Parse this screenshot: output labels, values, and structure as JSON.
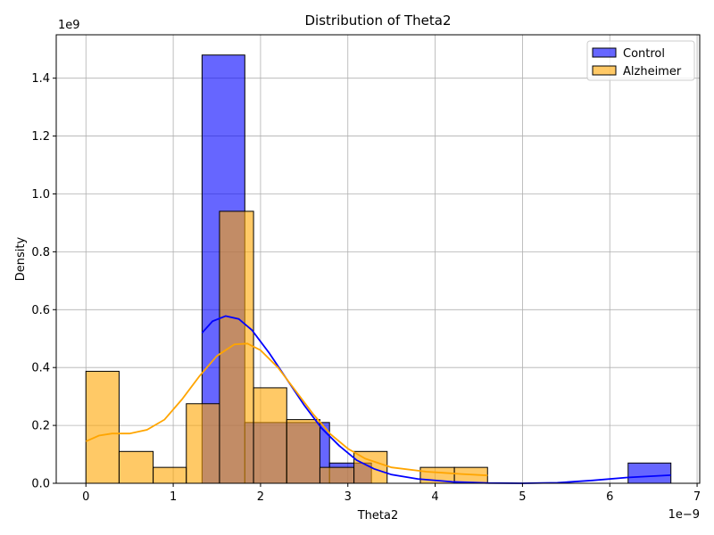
{
  "chart_data": {
    "type": "histogram",
    "title": "Distribution of Theta2",
    "xlabel": "Theta2",
    "ylabel": "Density",
    "x_offset_label": "1e−9",
    "y_offset_label": "1e9",
    "x_scale": 1e-09,
    "y_scale": 1000000000.0,
    "xlim": [
      -0.34,
      7.03
    ],
    "ylim": [
      0,
      1.55
    ],
    "x_ticks": [
      0,
      1,
      2,
      3,
      4,
      5,
      6,
      7
    ],
    "x_tick_labels": [
      "0",
      "1",
      "2",
      "3",
      "4",
      "5",
      "6",
      "7"
    ],
    "y_ticks": [
      0.0,
      0.2,
      0.4,
      0.6,
      0.8,
      1.0,
      1.2,
      1.4
    ],
    "y_tick_labels": [
      "0.0",
      "0.2",
      "0.4",
      "0.6",
      "0.8",
      "1.0",
      "1.2",
      "1.4"
    ],
    "grid": true,
    "legend_position": "top-right",
    "series": [
      {
        "name": "Control",
        "color": "#0000ff",
        "fill_opacity": 0.6,
        "bins": [
          {
            "x0": 1.33,
            "x1": 1.82,
            "value": 1.48
          },
          {
            "x0": 1.82,
            "x1": 2.3,
            "value": 0.21
          },
          {
            "x0": 2.3,
            "x1": 2.79,
            "value": 0.21
          },
          {
            "x0": 2.79,
            "x1": 3.27,
            "value": 0.07
          },
          {
            "x0": 6.21,
            "x1": 6.7,
            "value": 0.07
          }
        ],
        "kde": {
          "color": "#0000ff",
          "points": [
            [
              1.33,
              0.52
            ],
            [
              1.45,
              0.56
            ],
            [
              1.6,
              0.578
            ],
            [
              1.75,
              0.568
            ],
            [
              1.9,
              0.53
            ],
            [
              2.1,
              0.45
            ],
            [
              2.3,
              0.36
            ],
            [
              2.5,
              0.27
            ],
            [
              2.7,
              0.19
            ],
            [
              2.9,
              0.13
            ],
            [
              3.1,
              0.08
            ],
            [
              3.3,
              0.05
            ],
            [
              3.5,
              0.03
            ],
            [
              3.8,
              0.015
            ],
            [
              4.2,
              0.005
            ],
            [
              4.6,
              0.001
            ],
            [
              5.0,
              0.0
            ],
            [
              5.4,
              0.002
            ],
            [
              5.8,
              0.01
            ],
            [
              6.2,
              0.02
            ],
            [
              6.7,
              0.028
            ]
          ]
        }
      },
      {
        "name": "Alzheimer",
        "color": "#ffa500",
        "fill_opacity": 0.6,
        "bins": [
          {
            "x0": 0.0,
            "x1": 0.38,
            "value": 0.387
          },
          {
            "x0": 0.38,
            "x1": 0.77,
            "value": 0.11
          },
          {
            "x0": 0.77,
            "x1": 1.15,
            "value": 0.055
          },
          {
            "x0": 1.15,
            "x1": 1.53,
            "value": 0.275
          },
          {
            "x0": 1.53,
            "x1": 1.92,
            "value": 0.94
          },
          {
            "x0": 1.92,
            "x1": 2.3,
            "value": 0.33
          },
          {
            "x0": 2.3,
            "x1": 2.68,
            "value": 0.22
          },
          {
            "x0": 2.68,
            "x1": 3.07,
            "value": 0.055
          },
          {
            "x0": 3.07,
            "x1": 3.45,
            "value": 0.11
          },
          {
            "x0": 3.83,
            "x1": 4.22,
            "value": 0.055
          },
          {
            "x0": 4.22,
            "x1": 4.6,
            "value": 0.055
          }
        ],
        "kde": {
          "color": "#ffa500",
          "points": [
            [
              0.0,
              0.145
            ],
            [
              0.15,
              0.165
            ],
            [
              0.3,
              0.172
            ],
            [
              0.5,
              0.172
            ],
            [
              0.7,
              0.185
            ],
            [
              0.9,
              0.22
            ],
            [
              1.1,
              0.29
            ],
            [
              1.3,
              0.37
            ],
            [
              1.5,
              0.44
            ],
            [
              1.7,
              0.48
            ],
            [
              1.85,
              0.483
            ],
            [
              2.0,
              0.46
            ],
            [
              2.2,
              0.4
            ],
            [
              2.4,
              0.32
            ],
            [
              2.6,
              0.24
            ],
            [
              2.8,
              0.17
            ],
            [
              3.0,
              0.12
            ],
            [
              3.2,
              0.085
            ],
            [
              3.5,
              0.055
            ],
            [
              3.9,
              0.04
            ],
            [
              4.3,
              0.032
            ],
            [
              4.6,
              0.027
            ]
          ]
        }
      }
    ]
  }
}
